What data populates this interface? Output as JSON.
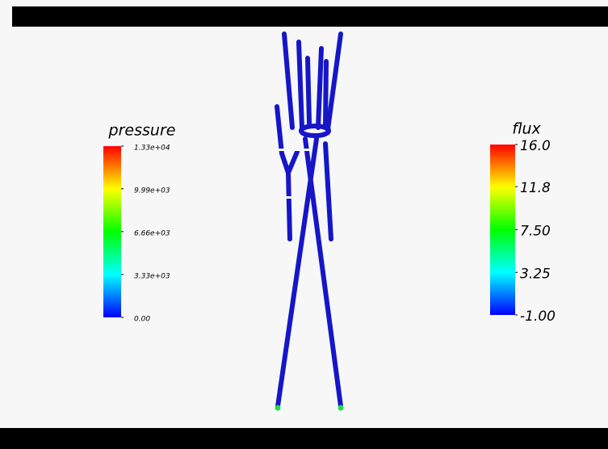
{
  "colorbars": [
    {
      "title": "pressure",
      "ticks": [
        {
          "value": 13300,
          "label": "1.33e+04"
        },
        {
          "value": 9990,
          "label": "9.99e+03"
        },
        {
          "value": 6660,
          "label": "6.66e+03"
        },
        {
          "value": 3330,
          "label": "3.33e+03"
        },
        {
          "value": 0,
          "label": "0.00"
        }
      ]
    },
    {
      "title": "flux",
      "ticks": [
        {
          "value": 16,
          "label": "16.0"
        },
        11.8,
        {
          "value": 7.5,
          "label": "7.50"
        },
        3.25,
        {
          "value": -1,
          "label": "-1.00"
        }
      ]
    }
  ]
}
